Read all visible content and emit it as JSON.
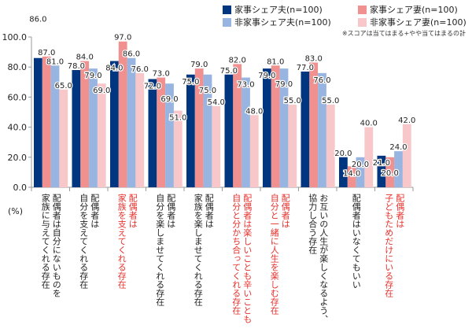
{
  "chart_data": {
    "type": "bar",
    "title": "",
    "ylabel": "(%)",
    "ylim": [
      0,
      100
    ],
    "yticks": [
      "0.0",
      "20.0",
      "40.0",
      "60.0",
      "80.0",
      "100.0"
    ],
    "note": "※スコアは当てはまる+やや当てはまるの計",
    "colors": [
      "#003580",
      "#f0908f",
      "#97b5e0",
      "#f7c7c9"
    ],
    "categories": [
      {
        "lines": [
          "配偶者は自分にないものを",
          "家族に与えてくれる存在"
        ],
        "highlight": false
      },
      {
        "lines": [
          "配偶者は",
          "自分を支えてくれる存在"
        ],
        "highlight": false
      },
      {
        "lines": [
          "配偶者は",
          "家族を支えてくれる存在"
        ],
        "highlight": true
      },
      {
        "lines": [
          "配偶者は",
          "自分を楽しませてくれる存在"
        ],
        "highlight": false
      },
      {
        "lines": [
          "配偶者は",
          "家族を楽しませてくれる存在"
        ],
        "highlight": false
      },
      {
        "lines": [
          "配偶者は楽しいことも辛いことも",
          "自分と分かち合ってくれる存在"
        ],
        "highlight": true
      },
      {
        "lines": [
          "配偶者は",
          "自分と一緒に人生を楽しむ存在"
        ],
        "highlight": true
      },
      {
        "lines": [
          "お互いの人生が楽しくなるよう、",
          "協力し合う存在"
        ],
        "highlight": false
      },
      {
        "lines": [
          "配偶者はいなくてもいい"
        ],
        "highlight": false
      },
      {
        "lines": [
          "配偶者は",
          "子どもためだけにいる存在"
        ],
        "highlight": true
      }
    ],
    "series": [
      {
        "name": "家事シェア夫(n=100)",
        "values": [
          86,
          78,
          84,
          72,
          75,
          75,
          79,
          77,
          20,
          21
        ]
      },
      {
        "name": "家事シェア妻(n=100)",
        "values": [
          87,
          84,
          97,
          73,
          79,
          82,
          81,
          83,
          14,
          20
        ]
      },
      {
        "name": "非家事シェア夫(n=100)",
        "values": [
          81,
          79,
          86,
          69,
          75,
          73,
          79,
          76,
          20,
          24
        ]
      },
      {
        "name": "非家事シェア妻(n=100)",
        "values": [
          65,
          69,
          76,
          51,
          54,
          48,
          55,
          55,
          40,
          42
        ]
      }
    ]
  }
}
